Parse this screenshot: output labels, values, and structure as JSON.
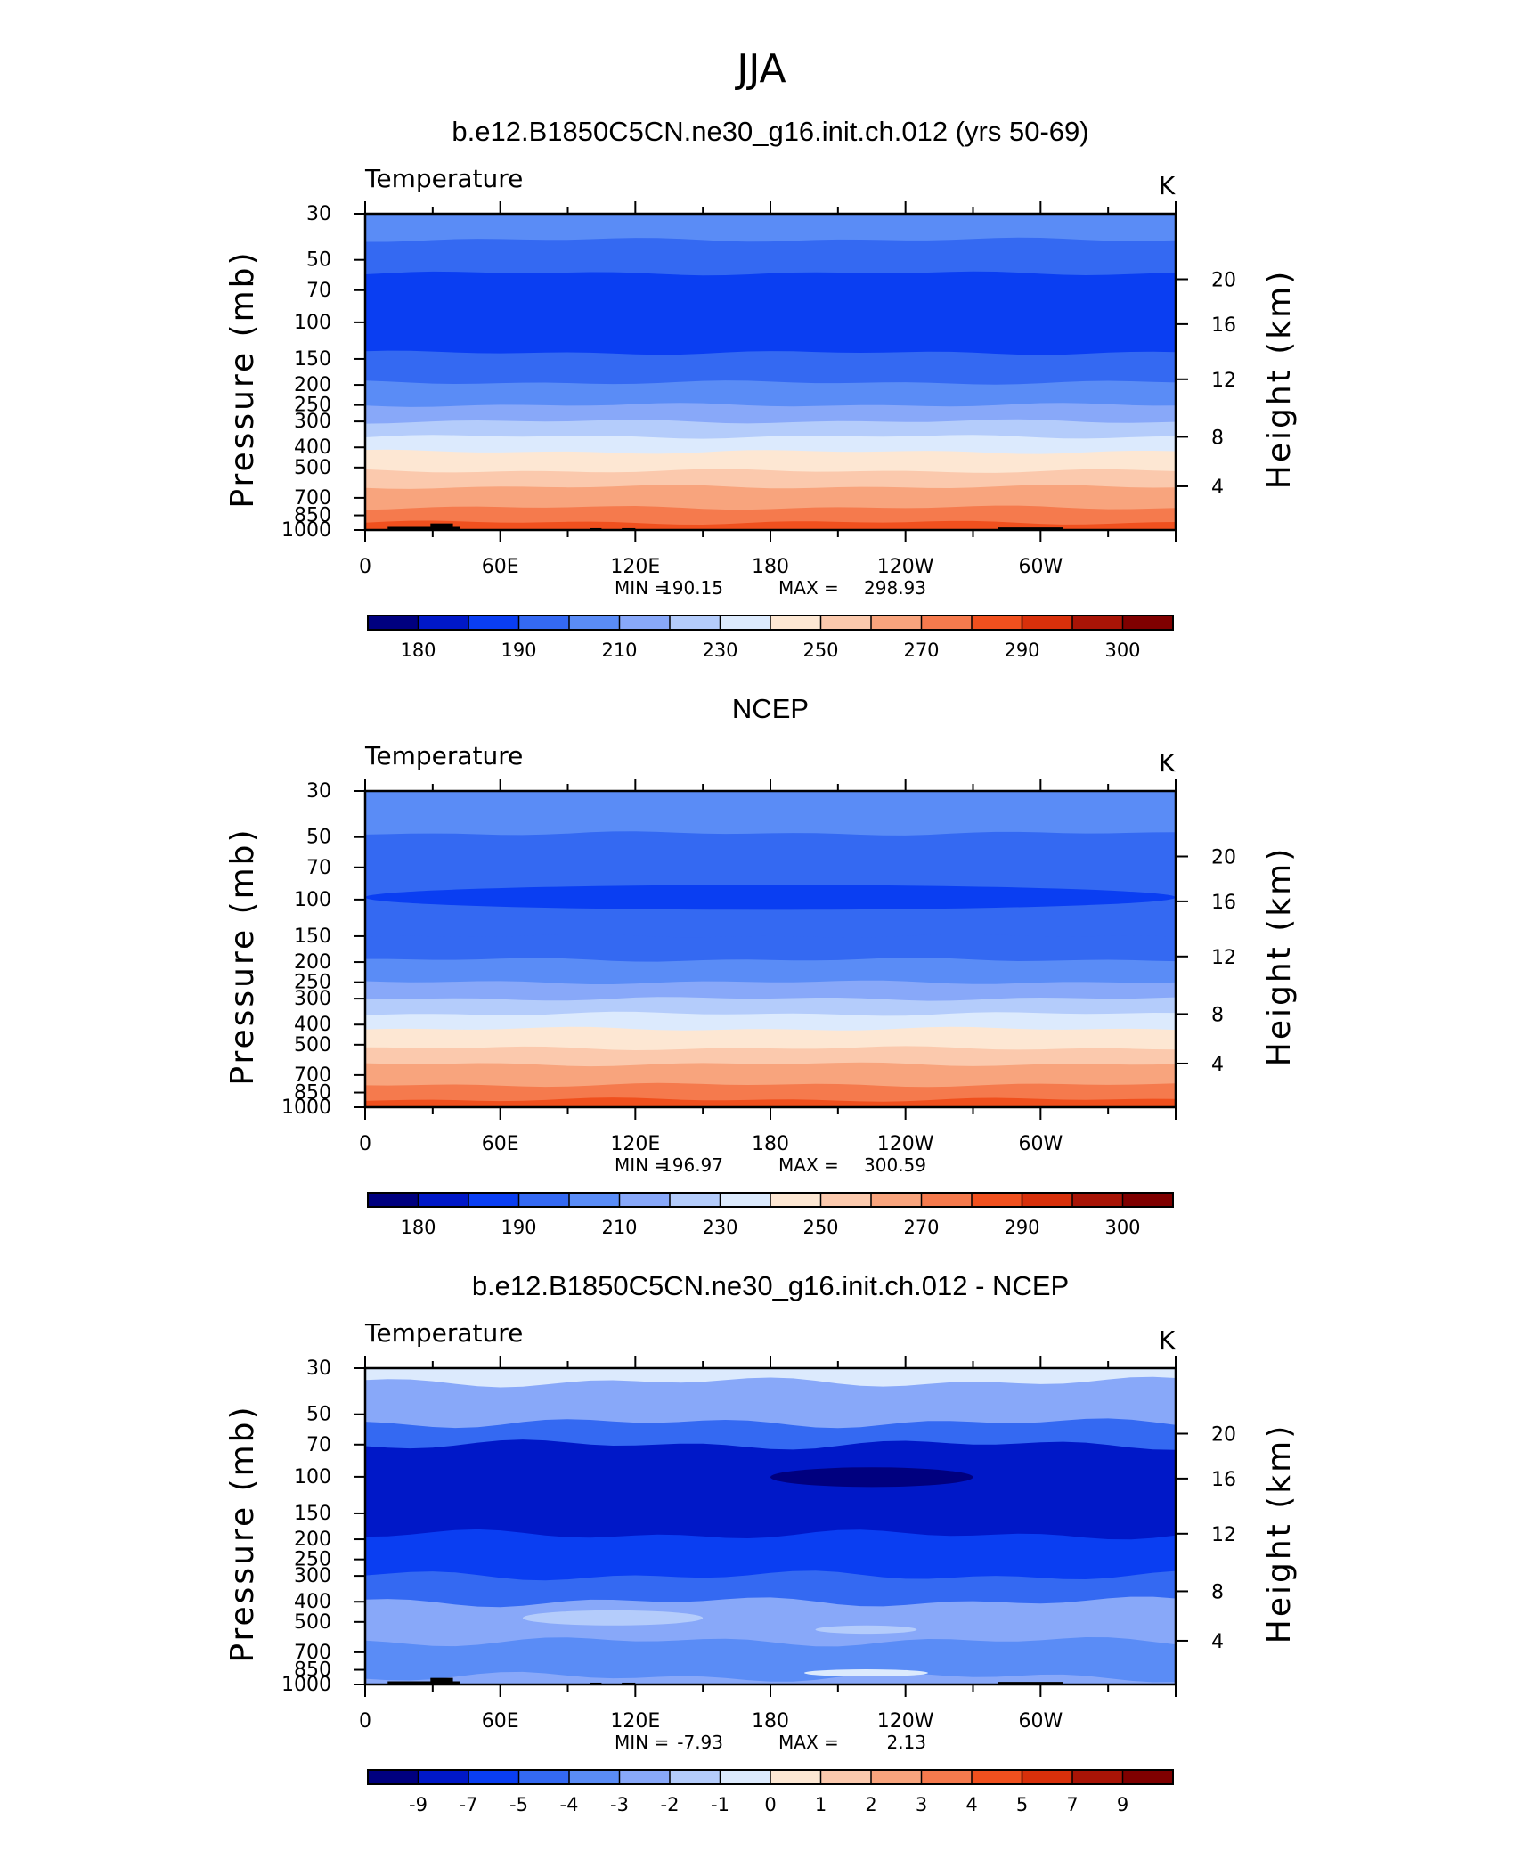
{
  "figure": {
    "title": "JJA"
  },
  "colorbar_palette": [
    "#00007f",
    "#0018c8",
    "#0a3ef2",
    "#3469f2",
    "#5a8cf6",
    "#88a8f9",
    "#b4ccfb",
    "#dceafd",
    "#fde7d3",
    "#fbc9ad",
    "#f8a47d",
    "#f57a4d",
    "#f0501e",
    "#d8300b",
    "#a81406",
    "#7f0000"
  ],
  "chart_data": [
    {
      "type": "contour",
      "panel_title": "b.e12.B1850C5CN.ne30_g16.init.ch.012 (yrs 50-69)",
      "variable": "Temperature",
      "units": "K",
      "ylabel": "Pressure (mb)",
      "ylabel_right": "Height (km)",
      "x_ticks": [
        "0",
        "60E",
        "120E",
        "180",
        "120W",
        "60W"
      ],
      "y_ticks": [
        "30",
        "50",
        "70",
        "100",
        "150",
        "200",
        "250",
        "300",
        "400",
        "500",
        "700",
        "850",
        "1000"
      ],
      "y_ticks_right": [
        "20",
        "16",
        "12",
        "8",
        "4"
      ],
      "min_label": "MIN =",
      "min": "190.15",
      "max_label": "MAX =",
      "max": "298.93",
      "colorbar_labels": [
        "180",
        "190",
        "210",
        "230",
        "250",
        "270",
        "290",
        "300"
      ],
      "bands": [
        {
          "p_top": 30,
          "p_bot": 40,
          "level": 4
        },
        {
          "p_top": 40,
          "p_bot": 58,
          "level": 3
        },
        {
          "p_top": 58,
          "p_bot": 140,
          "level": 2
        },
        {
          "p_top": 140,
          "p_bot": 195,
          "level": 3
        },
        {
          "p_top": 195,
          "p_bot": 250,
          "level": 4
        },
        {
          "p_top": 250,
          "p_bot": 300,
          "level": 5
        },
        {
          "p_top": 300,
          "p_bot": 355,
          "level": 6
        },
        {
          "p_top": 355,
          "p_bot": 420,
          "level": 7
        },
        {
          "p_top": 420,
          "p_bot": 520,
          "level": 8
        },
        {
          "p_top": 520,
          "p_bot": 620,
          "level": 9
        },
        {
          "p_top": 620,
          "p_bot": 780,
          "level": 10
        },
        {
          "p_top": 780,
          "p_bot": 920,
          "level": 11
        },
        {
          "p_top": 920,
          "p_bot": 1000,
          "level": 12
        }
      ],
      "blobs": [],
      "topography": true
    },
    {
      "type": "contour",
      "panel_title": "NCEP",
      "variable": "Temperature",
      "units": "K",
      "ylabel": "Pressure (mb)",
      "ylabel_right": "Height (km)",
      "x_ticks": [
        "0",
        "60E",
        "120E",
        "180",
        "120W",
        "60W"
      ],
      "y_ticks": [
        "30",
        "50",
        "70",
        "100",
        "150",
        "200",
        "250",
        "300",
        "400",
        "500",
        "700",
        "850",
        "1000"
      ],
      "y_ticks_right": [
        "20",
        "16",
        "12",
        "8",
        "4"
      ],
      "min_label": "MIN =",
      "min": "196.97",
      "max_label": "MAX =",
      "max": "300.59",
      "colorbar_labels": [
        "180",
        "190",
        "210",
        "230",
        "250",
        "270",
        "290",
        "300"
      ],
      "bands": [
        {
          "p_top": 30,
          "p_bot": 48,
          "level": 4
        },
        {
          "p_top": 48,
          "p_bot": 150,
          "level": 3
        },
        {
          "p_top": 150,
          "p_bot": 195,
          "level": 3
        },
        {
          "p_top": 195,
          "p_bot": 250,
          "level": 4
        },
        {
          "p_top": 250,
          "p_bot": 300,
          "level": 5
        },
        {
          "p_top": 300,
          "p_bot": 355,
          "level": 6
        },
        {
          "p_top": 355,
          "p_bot": 420,
          "level": 7
        },
        {
          "p_top": 420,
          "p_bot": 520,
          "level": 8
        },
        {
          "p_top": 520,
          "p_bot": 620,
          "level": 9
        },
        {
          "p_top": 620,
          "p_bot": 780,
          "level": 10
        },
        {
          "p_top": 780,
          "p_bot": 920,
          "level": 11
        },
        {
          "p_top": 920,
          "p_bot": 1000,
          "level": 12
        }
      ],
      "blobs": [
        {
          "lon_from": 0,
          "lon_to": 360,
          "p_top": 85,
          "p_bot": 112,
          "level": 2
        }
      ],
      "topography": false
    },
    {
      "type": "contour",
      "panel_title": "b.e12.B1850C5CN.ne30_g16.init.ch.012 - NCEP",
      "variable": "Temperature",
      "units": "K",
      "ylabel": "Pressure (mb)",
      "ylabel_right": "Height (km)",
      "x_ticks": [
        "0",
        "60E",
        "120E",
        "180",
        "120W",
        "60W"
      ],
      "y_ticks": [
        "30",
        "50",
        "70",
        "100",
        "150",
        "200",
        "250",
        "300",
        "400",
        "500",
        "700",
        "850",
        "1000"
      ],
      "y_ticks_right": [
        "20",
        "16",
        "12",
        "8",
        "4"
      ],
      "min_label": "MIN =",
      "min": "-7.93",
      "max_label": "MAX =",
      "max": "2.13",
      "colorbar_labels": [
        "-9",
        "-7",
        "-5",
        "-4",
        "-3",
        "-2",
        "-1",
        "0",
        "1",
        "2",
        "3",
        "4",
        "5",
        "7",
        "9"
      ],
      "bands": [
        {
          "p_top": 30,
          "p_bot": 35,
          "level": 7
        },
        {
          "p_top": 35,
          "p_bot": 55,
          "level": 5
        },
        {
          "p_top": 55,
          "p_bot": 70,
          "level": 3
        },
        {
          "p_top": 70,
          "p_bot": 190,
          "level": 1
        },
        {
          "p_top": 190,
          "p_bot": 300,
          "level": 2
        },
        {
          "p_top": 300,
          "p_bot": 400,
          "level": 3
        },
        {
          "p_top": 400,
          "p_bot": 620,
          "level": 5
        },
        {
          "p_top": 620,
          "p_bot": 920,
          "level": 4
        },
        {
          "p_top": 920,
          "p_bot": 1000,
          "level": 5
        }
      ],
      "blobs": [
        {
          "lon_from": 180,
          "lon_to": 270,
          "p_top": 90,
          "p_bot": 112,
          "level": 0
        },
        {
          "lon_from": 200,
          "lon_to": 245,
          "p_top": 520,
          "p_bot": 570,
          "level": 6
        },
        {
          "lon_from": 195,
          "lon_to": 250,
          "p_top": 860,
          "p_bot": 900,
          "level": 7
        },
        {
          "lon_from": 70,
          "lon_to": 150,
          "p_top": 440,
          "p_bot": 520,
          "level": 6
        }
      ],
      "topography": true
    }
  ]
}
